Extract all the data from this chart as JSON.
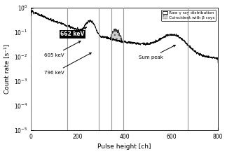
{
  "xlim": [
    0,
    800
  ],
  "ylim": [
    1e-05,
    1.0
  ],
  "xlabel": "Pulse height [ch]",
  "ylabel": "Count rate [s⁻¹]",
  "legend_raw": "Raw γ ray distribution",
  "legend_coin": "Coincident with β rays",
  "vlines": [
    155,
    290,
    345,
    395,
    670
  ],
  "xticks": [
    0,
    200,
    400,
    600,
    800
  ],
  "background_color": "white",
  "hatch": "..."
}
